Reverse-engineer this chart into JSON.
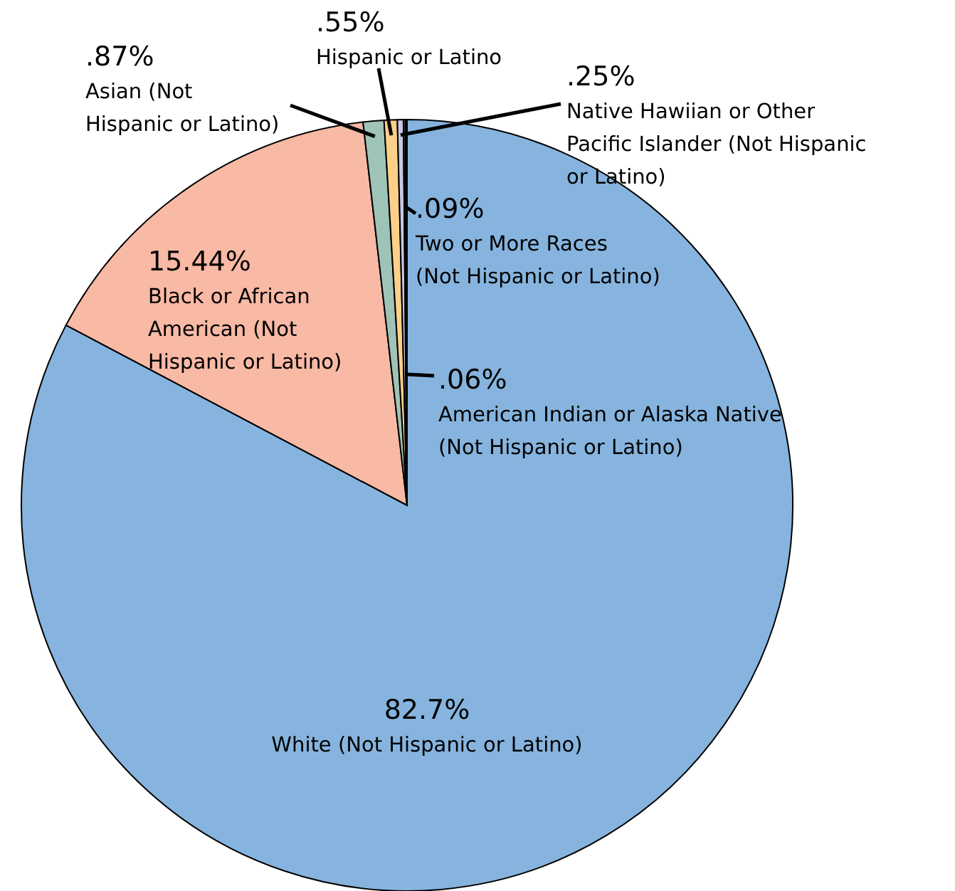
{
  "chart_data": {
    "type": "pie",
    "categories": [
      "White (Not Hispanic or Latino)",
      "Black or African American (Not Hispanic or Latino)",
      "Asian (Not Hispanic or Latino)",
      "Hispanic or Latino",
      "Native Hawiian or Other Pacific Islander (Not Hispanic or Latino)",
      "Two or More Races (Not Hispanic or Latino)",
      "American Indian or Alaska Native (Not Hispanic or Latino)"
    ],
    "values": [
      82.7,
      15.44,
      0.87,
      0.55,
      0.25,
      0.09,
      0.06
    ],
    "value_labels": [
      "82.7%",
      "15.44%",
      ".87%",
      ".55%",
      ".25%",
      ".09%",
      ".06%"
    ],
    "colors": [
      "#86b4de",
      "#f8b9a5",
      "#9fc3b7",
      "#fdd08a",
      "#c7c9e6",
      "#3a3a3a",
      "#000000"
    ]
  }
}
